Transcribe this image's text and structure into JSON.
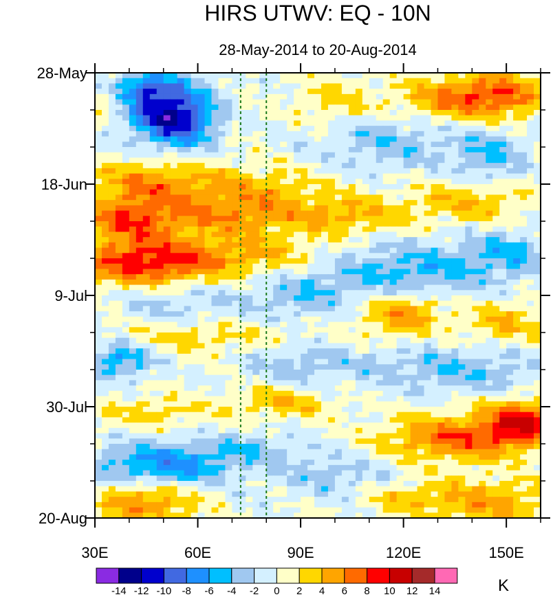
{
  "chart_data": {
    "type": "heatmap",
    "title": "HIRS UTWV: EQ - 10N",
    "subtitle": "28-May-2014 to 20-Aug-2014",
    "units": "K",
    "x": {
      "range": [
        30,
        160
      ],
      "ticks": [
        30,
        60,
        90,
        120,
        150
      ],
      "tick_labels": [
        "30E",
        "60E",
        "90E",
        "120E",
        "150E"
      ],
      "minor_step": 10
    },
    "y": {
      "range_days": [
        0,
        84
      ],
      "ticks": [
        0,
        21,
        42,
        63,
        84
      ],
      "tick_labels": [
        "28-May",
        "18-Jun",
        "9-Jul",
        "30-Jul",
        "20-Aug"
      ],
      "minor_step_days": 7,
      "direction": "time increases downward"
    },
    "reference_lines_lon": [
      72.5,
      80
    ],
    "colorbar": {
      "levels": [
        -14,
        -12,
        -10,
        -8,
        -6,
        -4,
        -2,
        0,
        2,
        4,
        6,
        8,
        10,
        12,
        14
      ],
      "level_labels": [
        "-14",
        "-12",
        "-10",
        "-8",
        "-6",
        "-4",
        "-2",
        "0",
        "2",
        "4",
        "6",
        "8",
        "10",
        "12",
        "14"
      ],
      "colors": [
        "#8a2be2",
        "#00008b",
        "#0000cd",
        "#4169e1",
        "#1e90ff",
        "#00bfff",
        "#a0c8f0",
        "#d4f0ff",
        "#ffffc8",
        "#ffd700",
        "#ffa500",
        "#ff6a00",
        "#ff0000",
        "#c80000",
        "#a52a2a",
        "#ff69b4"
      ]
    },
    "features": [
      {
        "lon": 50,
        "day": 6,
        "amp": -9,
        "sx": 9,
        "sy": 4
      },
      {
        "lon": 55,
        "day": 10,
        "amp": -7,
        "sx": 7,
        "sy": 3
      },
      {
        "lon": 43,
        "day": 3,
        "amp": -4,
        "sx": 6,
        "sy": 2
      },
      {
        "lon": 135,
        "day": 5,
        "amp": 6,
        "sx": 12,
        "sy": 3
      },
      {
        "lon": 150,
        "day": 4,
        "amp": 5,
        "sx": 9,
        "sy": 3
      },
      {
        "lon": 100,
        "day": 6,
        "amp": 3,
        "sx": 8,
        "sy": 3
      },
      {
        "lon": 35,
        "day": 6,
        "amp": 3,
        "sx": 4,
        "sy": 2
      },
      {
        "lon": 115,
        "day": 13,
        "amp": -3.5,
        "sx": 14,
        "sy": 4
      },
      {
        "lon": 145,
        "day": 16,
        "amp": -4,
        "sx": 8,
        "sy": 4
      },
      {
        "lon": 45,
        "day": 21,
        "amp": 5,
        "sx": 12,
        "sy": 3
      },
      {
        "lon": 75,
        "day": 22,
        "amp": 4,
        "sx": 16,
        "sy": 3
      },
      {
        "lon": 40,
        "day": 28,
        "amp": 7,
        "sx": 10,
        "sy": 3
      },
      {
        "lon": 70,
        "day": 27,
        "amp": 4.5,
        "sx": 15,
        "sy": 2.5
      },
      {
        "lon": 105,
        "day": 27,
        "amp": 4,
        "sx": 12,
        "sy": 2.5
      },
      {
        "lon": 140,
        "day": 24,
        "amp": 4,
        "sx": 12,
        "sy": 3
      },
      {
        "lon": 45,
        "day": 36,
        "amp": 9,
        "sx": 14,
        "sy": 3
      },
      {
        "lon": 75,
        "day": 34,
        "amp": 4,
        "sx": 16,
        "sy": 3
      },
      {
        "lon": 120,
        "day": 38,
        "amp": -5,
        "sx": 18,
        "sy": 4
      },
      {
        "lon": 150,
        "day": 34,
        "amp": -4,
        "sx": 10,
        "sy": 3
      },
      {
        "lon": 120,
        "day": 45,
        "amp": 6,
        "sx": 9,
        "sy": 3
      },
      {
        "lon": 90,
        "day": 42,
        "amp": -3,
        "sx": 10,
        "sy": 3
      },
      {
        "lon": 55,
        "day": 43,
        "amp": -2.5,
        "sx": 14,
        "sy": 3
      },
      {
        "lon": 150,
        "day": 47,
        "amp": 4,
        "sx": 8,
        "sy": 3
      },
      {
        "lon": 60,
        "day": 50,
        "amp": 3,
        "sx": 20,
        "sy": 2
      },
      {
        "lon": 37,
        "day": 54,
        "amp": -6,
        "sx": 7,
        "sy": 2.5
      },
      {
        "lon": 90,
        "day": 55,
        "amp": -3,
        "sx": 12,
        "sy": 3
      },
      {
        "lon": 135,
        "day": 56,
        "amp": -4,
        "sx": 18,
        "sy": 3
      },
      {
        "lon": 85,
        "day": 62,
        "amp": 4,
        "sx": 10,
        "sy": 2
      },
      {
        "lon": 48,
        "day": 64,
        "amp": 3,
        "sx": 12,
        "sy": 2
      },
      {
        "lon": 155,
        "day": 66,
        "amp": 9,
        "sx": 8,
        "sy": 3
      },
      {
        "lon": 135,
        "day": 69,
        "amp": 7,
        "sx": 14,
        "sy": 3
      },
      {
        "lon": 50,
        "day": 74,
        "amp": -7,
        "sx": 14,
        "sy": 3
      },
      {
        "lon": 75,
        "day": 71,
        "amp": -3,
        "sx": 10,
        "sy": 2
      },
      {
        "lon": 45,
        "day": 81,
        "amp": 6,
        "sx": 10,
        "sy": 3
      },
      {
        "lon": 145,
        "day": 81,
        "amp": 5,
        "sx": 12,
        "sy": 3
      },
      {
        "lon": 120,
        "day": 80,
        "amp": 3,
        "sx": 10,
        "sy": 2
      },
      {
        "lon": 100,
        "day": 76,
        "amp": -3,
        "sx": 12,
        "sy": 3
      }
    ]
  }
}
